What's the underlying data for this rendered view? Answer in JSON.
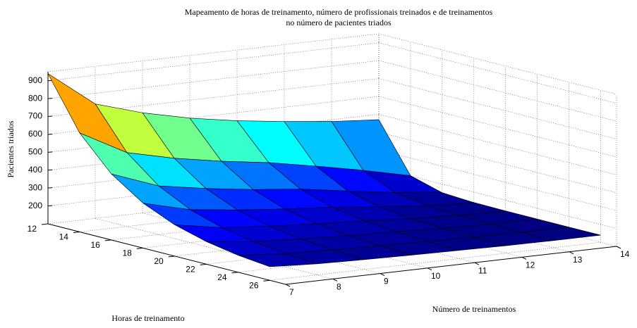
{
  "chart_data": {
    "type": "surface",
    "title": [
      "Mapeamento de horas de treinamento, número de profissionais treinados e de treinamentos",
      "no número de pacientes triados"
    ],
    "xlabel": "Horas de treinamento",
    "ylabel": "Número de treinamentos",
    "zlabel": "Pacientes triados",
    "x": [
      12,
      14,
      16,
      18,
      20,
      22,
      24,
      26
    ],
    "y": [
      7,
      8,
      9,
      10,
      11,
      12,
      13,
      14
    ],
    "z": [
      [
        940,
        653,
        469,
        351,
        275,
        226,
        195,
        176
      ],
      [
        740,
        513,
        372,
        284,
        229,
        195,
        174,
        162
      ],
      [
        660,
        451,
        327,
        252,
        207,
        180,
        164,
        155
      ],
      [
        600,
        404,
        291,
        227,
        190,
        169,
        157,
        150
      ],
      [
        555,
        366,
        263,
        207,
        177,
        160,
        151,
        146
      ],
      [
        520,
        316,
        222,
        178,
        157,
        148,
        144,
        142
      ],
      [
        490,
        262,
        183,
        155,
        145,
        142,
        141,
        140
      ],
      [
        470,
        202,
        152,
        142,
        140,
        140,
        140,
        140
      ]
    ],
    "xlim": [
      12,
      27
    ],
    "ylim": [
      7,
      14
    ],
    "zlim": [
      100,
      950
    ],
    "xticks": [
      12,
      14,
      16,
      18,
      20,
      22,
      24,
      26
    ],
    "yticks": [
      7,
      8,
      9,
      10,
      11,
      12,
      13,
      14
    ],
    "zticks": [
      200,
      300,
      400,
      500,
      600,
      700,
      800,
      900
    ],
    "grid": true,
    "colormap": "jet"
  }
}
